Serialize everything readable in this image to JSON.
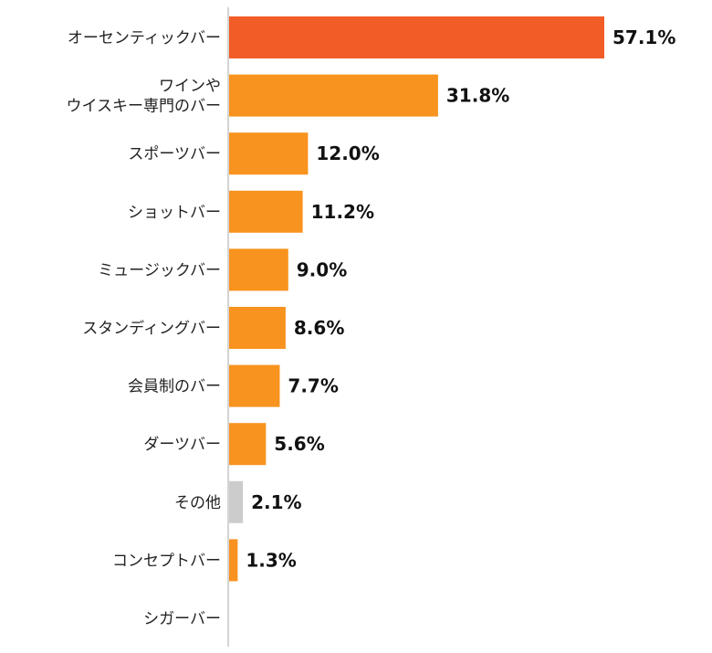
{
  "chart_data": {
    "type": "bar",
    "orientation": "horizontal",
    "categories": [
      [
        "オーセンティックバー"
      ],
      [
        "ワインや",
        "ウイスキー専門のバー"
      ],
      [
        "スポーツバー"
      ],
      [
        "ショットバー"
      ],
      [
        "ミュージックバー"
      ],
      [
        "スタンディングバー"
      ],
      [
        "会員制のバー"
      ],
      [
        "ダーツバー"
      ],
      [
        "その他"
      ],
      [
        "コンセプトバー"
      ],
      [
        "シガーバー"
      ]
    ],
    "values": [
      57.1,
      31.8,
      12.0,
      11.2,
      9.0,
      8.6,
      7.7,
      5.6,
      2.1,
      1.3,
      0
    ],
    "value_labels": [
      "57.1%",
      "31.8%",
      "12.0%",
      "11.2%",
      "9.0%",
      "8.6%",
      "7.7%",
      "5.6%",
      "2.1%",
      "1.3%",
      ""
    ],
    "bar_colors": [
      "#f25c27",
      "#f7931e",
      "#f7931e",
      "#f7931e",
      "#f7931e",
      "#f7931e",
      "#f7931e",
      "#f7931e",
      "#cccccc",
      "#f7931e",
      "#f7931e"
    ],
    "xlim": [
      0,
      57.1
    ],
    "grid": false,
    "legend": "none"
  }
}
